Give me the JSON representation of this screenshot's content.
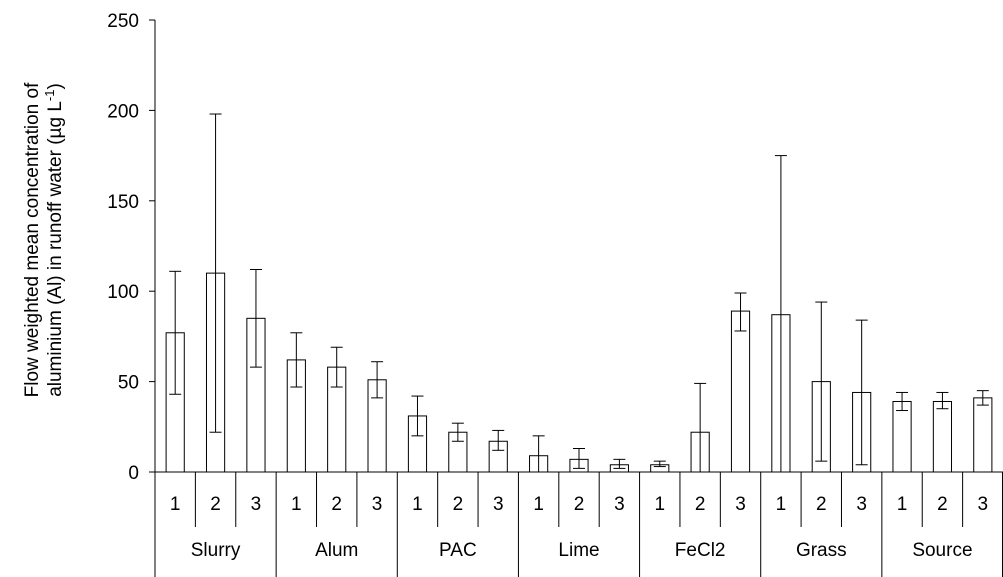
{
  "chart_data": {
    "type": "bar",
    "title": "",
    "ylabel_line1": "Flow weighted mean concentration of",
    "ylabel_line2": "aluminium  (Al) in runoff water (µg L",
    "ylabel_sup": "-1",
    "ylabel_close": ")",
    "xlabel": "",
    "ylim": [
      0,
      250
    ],
    "yticks": [
      0,
      50,
      100,
      150,
      200,
      250
    ],
    "grid": false,
    "legend": "none",
    "bar_color": "#ffffff",
    "bar_stroke": "#000000",
    "groups": [
      {
        "name": "Slurry",
        "categories": [
          "1",
          "2",
          "3"
        ],
        "values": [
          77,
          110,
          85
        ],
        "err_low": [
          43,
          22,
          58
        ],
        "err_high": [
          111,
          198,
          112
        ]
      },
      {
        "name": "Alum",
        "categories": [
          "1",
          "2",
          "3"
        ],
        "values": [
          62,
          58,
          51
        ],
        "err_low": [
          47,
          47,
          41
        ],
        "err_high": [
          77,
          69,
          61
        ]
      },
      {
        "name": "PAC",
        "categories": [
          "1",
          "2",
          "3"
        ],
        "values": [
          31,
          22,
          17
        ],
        "err_low": [
          20,
          17,
          12
        ],
        "err_high": [
          42,
          27,
          23
        ]
      },
      {
        "name": "Lime",
        "categories": [
          "1",
          "2",
          "3"
        ],
        "values": [
          9,
          7,
          4
        ],
        "err_low": [
          0,
          2,
          2
        ],
        "err_high": [
          20,
          13,
          7
        ]
      },
      {
        "name": "FeCl2",
        "categories": [
          "1",
          "2",
          "3"
        ],
        "values": [
          4,
          22,
          89
        ],
        "err_low": [
          3,
          0,
          78
        ],
        "err_high": [
          6,
          49,
          99
        ]
      },
      {
        "name": "Grass",
        "categories": [
          "1",
          "2",
          "3"
        ],
        "values": [
          87,
          50,
          44
        ],
        "err_low": [
          0,
          6,
          4
        ],
        "err_high": [
          175,
          94,
          84
        ]
      },
      {
        "name": "Source",
        "categories": [
          "1",
          "2",
          "3"
        ],
        "values": [
          39,
          39,
          41
        ],
        "err_low": [
          34,
          35,
          37
        ],
        "err_high": [
          44,
          44,
          45
        ]
      }
    ]
  }
}
